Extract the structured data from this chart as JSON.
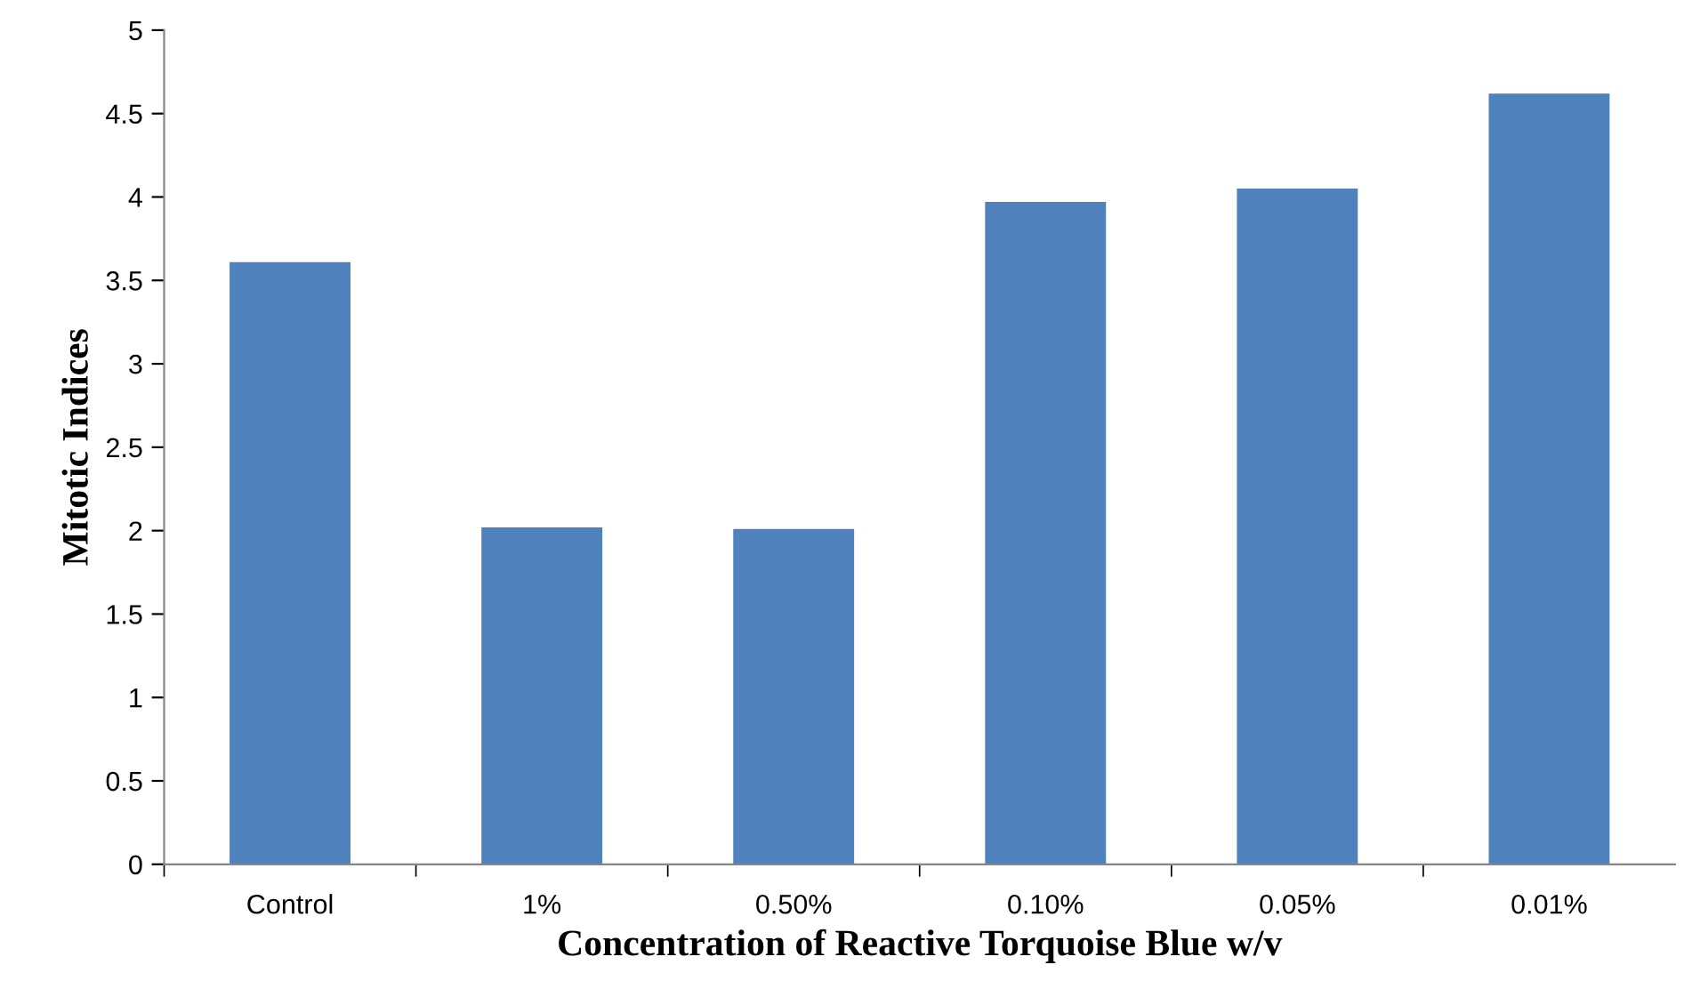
{
  "chart_data": {
    "type": "bar",
    "xlabel": "Concentration of Reactive Torquoise Blue w/v",
    "ylabel": "Mitotic Indices",
    "categories": [
      "Control",
      "1%",
      "0.50%",
      "0.10%",
      "0.05%",
      "0.01%"
    ],
    "values": [
      3.61,
      2.02,
      2.01,
      3.97,
      4.05,
      4.62
    ],
    "color": "#4f81bd",
    "ylim": [
      0,
      5
    ],
    "yticks": [
      0,
      {
        "value": 0.5,
        "label": "0.5"
      },
      1,
      {
        "value": 1.5,
        "label": "1.5"
      },
      2,
      {
        "value": 2.5,
        "label": "2.5"
      },
      3,
      {
        "value": 3.5,
        "label": "3.5"
      },
      4,
      {
        "value": 4.5,
        "label": "4.5"
      },
      5
    ],
    "grid": false
  }
}
